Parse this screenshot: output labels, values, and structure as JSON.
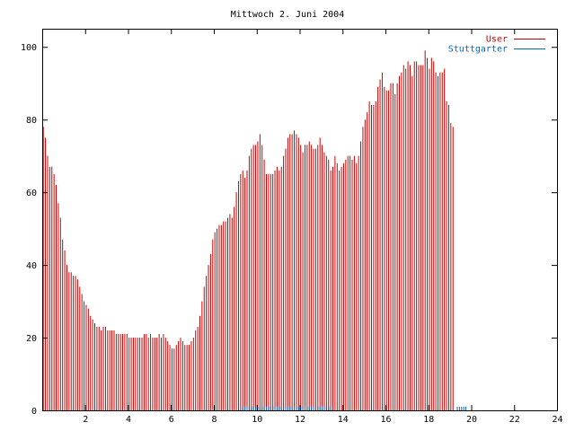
{
  "chart_data": {
    "type": "bar",
    "title": "Mittwoch 2. Juni 2004",
    "xlabel": "",
    "ylabel": "",
    "xlim": [
      0,
      24
    ],
    "ylim": [
      0,
      105
    ],
    "x_ticks": [
      2,
      4,
      6,
      8,
      10,
      12,
      14,
      16,
      18,
      20,
      22,
      24
    ],
    "y_ticks": [
      0,
      20,
      40,
      60,
      80,
      100
    ],
    "grid": false,
    "legend_position": "top-right",
    "hours_per_bar": 0.1,
    "series": [
      {
        "name": "User",
        "color": "#cc0000",
        "values": [
          78,
          75,
          70,
          67,
          67,
          65,
          62,
          57,
          53,
          47,
          44,
          40,
          38,
          38,
          37,
          37,
          36,
          34,
          32,
          30,
          29,
          28,
          26,
          25,
          24,
          23,
          23,
          22,
          23,
          23,
          22,
          22,
          22,
          22,
          21,
          21,
          21,
          21,
          21,
          21,
          20,
          20,
          20,
          20,
          20,
          20,
          20,
          21,
          21,
          20,
          21,
          20,
          20,
          20,
          21,
          20,
          21,
          20,
          19,
          18,
          17,
          17,
          18,
          19,
          20,
          19,
          18,
          18,
          18,
          19,
          20,
          22,
          23,
          26,
          30,
          34,
          37,
          40,
          43,
          47,
          49,
          50,
          51,
          51,
          52,
          52,
          53,
          54,
          53,
          56,
          60,
          63,
          65,
          66,
          64,
          66,
          70,
          72,
          73,
          73,
          74,
          76,
          73,
          69,
          65,
          65,
          65,
          65,
          66,
          67,
          66,
          67,
          70,
          72,
          75,
          76,
          76,
          77,
          76,
          75,
          73,
          71,
          73,
          73,
          74,
          73,
          72,
          72,
          73,
          75,
          73,
          71,
          70,
          69,
          66,
          67,
          70,
          68,
          66,
          67,
          68,
          69,
          70,
          70,
          69,
          70,
          68,
          70,
          74,
          78,
          80,
          82,
          85,
          84,
          84,
          85,
          89,
          91,
          93,
          89,
          88,
          88,
          90,
          90,
          87,
          90,
          92,
          93,
          95,
          94,
          96,
          95,
          92,
          96,
          96,
          95,
          95,
          95,
          99,
          97,
          94,
          97,
          96,
          93,
          92,
          93,
          93,
          94,
          85,
          84,
          79,
          78
        ]
      },
      {
        "name": "Stuttgarter",
        "color": "#0066cc",
        "values": [
          0,
          0,
          0,
          0,
          0,
          0,
          0,
          0,
          0,
          0,
          0,
          0,
          0,
          0,
          0,
          0,
          0,
          0,
          0,
          0,
          0,
          0,
          0,
          0,
          0,
          0,
          0,
          0,
          0,
          0,
          0,
          0,
          0,
          0,
          0,
          0,
          0,
          0,
          0,
          0,
          0,
          0,
          0,
          0,
          0,
          0,
          0,
          0,
          0,
          0,
          0,
          0,
          0,
          0,
          0,
          0,
          0,
          0,
          0,
          0,
          0,
          0,
          0,
          0,
          0,
          0,
          0,
          0,
          0,
          0,
          0,
          0,
          0,
          0,
          0,
          0,
          0,
          0,
          0,
          0,
          0,
          0,
          0,
          0,
          0,
          0,
          0,
          0,
          0,
          0,
          0,
          0,
          0,
          1,
          1,
          1,
          1,
          1,
          1,
          1,
          1,
          1,
          1,
          1,
          1,
          1,
          1,
          1,
          1,
          1,
          1,
          1,
          1,
          1,
          1,
          1,
          1,
          1,
          1,
          1,
          1,
          1,
          1,
          1,
          1,
          1,
          1,
          1,
          1,
          1,
          1,
          1,
          1,
          1,
          1,
          0,
          0,
          0,
          0,
          0,
          0,
          0,
          0,
          0,
          0,
          0,
          0,
          0,
          0,
          0,
          0,
          0,
          0,
          0,
          0,
          0,
          0,
          0,
          0,
          0,
          0,
          0,
          0,
          0,
          0,
          0,
          0,
          0,
          0,
          0,
          0,
          0,
          0,
          0,
          0,
          0,
          0,
          0,
          0,
          0,
          0,
          0,
          0,
          0,
          0,
          0,
          0,
          0,
          0,
          0,
          0,
          0,
          0,
          1,
          1,
          1,
          1,
          1
        ]
      }
    ]
  }
}
